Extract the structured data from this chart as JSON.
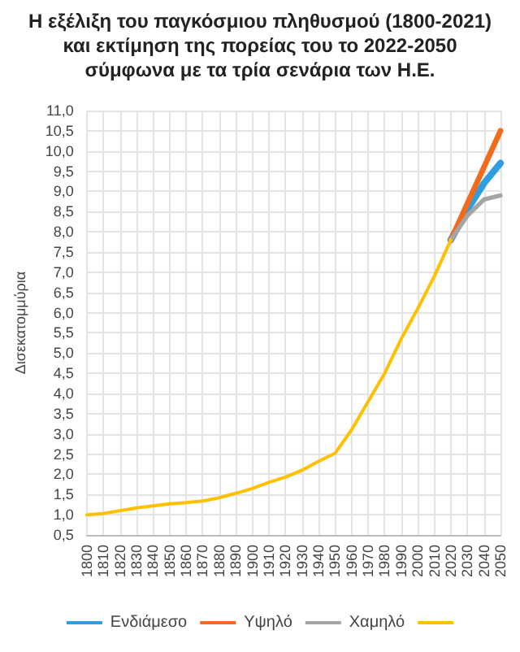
{
  "chart_data": {
    "type": "line",
    "title": "Η εξέλιξη του παγκόσμιου πληθυσμού (1800-2021) και εκτίμηση της πορείας του το 2022-2050 σύμφωνα με τα τρία σενάρια των Η.Ε.",
    "ylabel": "Δισεκατομμύρια",
    "categories": [
      "1800",
      "1810",
      "1820",
      "1830",
      "1840",
      "1850",
      "1860",
      "1870",
      "1880",
      "1890",
      "1900",
      "1910",
      "1920",
      "1930",
      "1940",
      "1950",
      "1960",
      "1970",
      "1980",
      "1990",
      "2000",
      "2010",
      "2020",
      "2030",
      "2040",
      "2050"
    ],
    "series": [
      {
        "name": "Ενδιάμεσο",
        "color": "#2e9ee0",
        "values": [
          null,
          null,
          null,
          null,
          null,
          null,
          null,
          null,
          null,
          null,
          null,
          null,
          null,
          null,
          null,
          null,
          null,
          null,
          null,
          null,
          null,
          null,
          7.8,
          8.55,
          9.2,
          9.7
        ]
      },
      {
        "name": "Υψηλό",
        "color": "#f26b1d",
        "values": [
          null,
          null,
          null,
          null,
          null,
          null,
          null,
          null,
          null,
          null,
          null,
          null,
          null,
          null,
          null,
          null,
          null,
          null,
          null,
          null,
          null,
          null,
          7.8,
          8.7,
          9.6,
          10.5
        ]
      },
      {
        "name": "Χαμηλό",
        "color": "#a5a5a5",
        "values": [
          null,
          null,
          null,
          null,
          null,
          null,
          null,
          null,
          null,
          null,
          null,
          null,
          null,
          null,
          null,
          null,
          null,
          null,
          null,
          null,
          null,
          null,
          7.8,
          8.4,
          8.8,
          8.9
        ]
      },
      {
        "color": "#ffc000",
        "values": [
          1.0,
          1.03,
          1.1,
          1.17,
          1.22,
          1.27,
          1.3,
          1.34,
          1.42,
          1.53,
          1.65,
          1.8,
          1.93,
          2.1,
          2.32,
          2.52,
          3.1,
          3.8,
          4.5,
          5.35,
          6.1,
          6.9,
          7.8,
          null,
          null,
          null
        ]
      }
    ],
    "ylim": [
      0.5,
      11.0
    ],
    "yticks": [
      {
        "value": 0.5,
        "label": "0,5"
      },
      {
        "value": 1,
        "label": "1,0"
      },
      {
        "value": 1.5,
        "label": "1,5"
      },
      {
        "value": 2,
        "label": "2,0"
      },
      {
        "value": 2.5,
        "label": "2,5"
      },
      {
        "value": 3,
        "label": "3,0"
      },
      {
        "value": 3.5,
        "label": "3,5"
      },
      {
        "value": 4,
        "label": "4,0"
      },
      {
        "value": 4.5,
        "label": "4,5"
      },
      {
        "value": 5,
        "label": "5,0"
      },
      {
        "value": 5.5,
        "label": "5,5"
      },
      {
        "value": 6,
        "label": "6,0"
      },
      {
        "value": 6.5,
        "label": "6,5"
      },
      {
        "value": 7,
        "label": "7,0"
      },
      {
        "value": 7.5,
        "label": "7,5"
      },
      {
        "value": 8,
        "label": "8,0"
      },
      {
        "value": 8.5,
        "label": "8,5"
      },
      {
        "value": 9,
        "label": "9,0"
      },
      {
        "value": 9.5,
        "label": "9,5"
      },
      {
        "value": 10,
        "label": "10,0"
      },
      {
        "value": 10.5,
        "label": "10,5"
      },
      {
        "value": 11,
        "label": "11,0"
      }
    ],
    "grid": true,
    "legend": "bottom",
    "marker": "none",
    "line_style": "solid"
  }
}
